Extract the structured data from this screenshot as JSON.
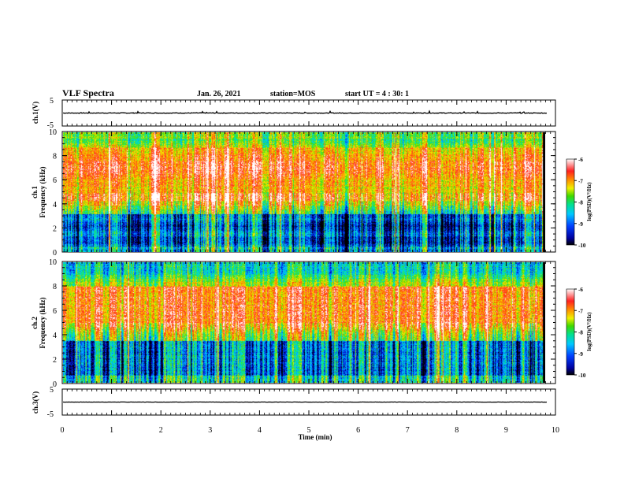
{
  "header": {
    "title": "VLF Spectra",
    "date": "Jan. 26, 2021",
    "station": "station=MOS",
    "start": "start  UT =   4 : 30: 1"
  },
  "chart_data": [
    {
      "type": "line",
      "name": "ch1-waveform",
      "ylabel": "ch.1(V)",
      "ylim": [
        -5,
        5
      ],
      "yticks": [
        "5",
        "-5"
      ],
      "note": "flat trace near 0 V with small spikes"
    },
    {
      "type": "heatmap",
      "name": "ch1-spectrogram",
      "ylabel_channel": "ch.1",
      "ylabel": "Frequency (kHz)",
      "ylim": [
        0,
        10
      ],
      "yticks": [
        "0",
        "2",
        "4",
        "6",
        "8",
        "10"
      ],
      "colorbar": {
        "label": "log(PSD)(V²/Hz)",
        "range": [
          -10,
          -6
        ],
        "ticks": [
          "-6",
          "-7",
          "-8",
          "-9",
          "-10"
        ]
      }
    },
    {
      "type": "heatmap",
      "name": "ch2-spectrogram",
      "ylabel_channel": "ch.2",
      "ylabel": "Frequency (kHz)",
      "ylim": [
        0,
        10
      ],
      "yticks": [
        "0",
        "2",
        "4",
        "6",
        "8",
        "10"
      ],
      "colorbar": {
        "label": "log(PSD)(V²/Hz)",
        "range": [
          -10,
          -6
        ],
        "ticks": [
          "-6",
          "-7",
          "-8",
          "-9",
          "-10"
        ]
      }
    },
    {
      "type": "line",
      "name": "ch3-waveform",
      "ylabel": "ch.3(V)",
      "ylim": [
        -5,
        5
      ],
      "yticks": [
        "5",
        "-5"
      ],
      "note": "flat trace near 0 V"
    }
  ],
  "xaxis": {
    "label": "Time  (min)",
    "xlim": [
      0,
      10
    ],
    "ticks": [
      "0",
      "1",
      "2",
      "3",
      "4",
      "5",
      "6",
      "7",
      "8",
      "9",
      "10"
    ],
    "data_end_min": 9.83
  },
  "colors": {
    "scale": [
      "#000000",
      "#0000b0",
      "#0050ff",
      "#00c8ff",
      "#00e6a0",
      "#50dc00",
      "#f0f000",
      "#ff9000",
      "#ff2a1a",
      "#ffffff"
    ]
  }
}
